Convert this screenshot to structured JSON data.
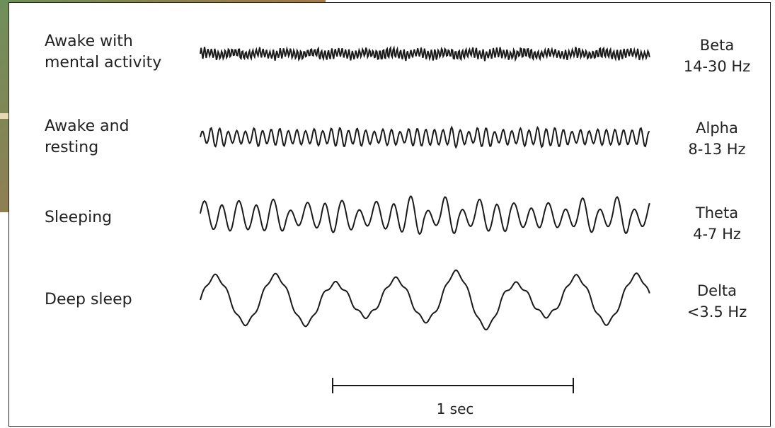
{
  "rows": [
    {
      "state": "Awake with\nmental activity",
      "band": "Beta",
      "range": "14-30 Hz",
      "cycles_per_second": 70,
      "amplitude": "small"
    },
    {
      "state": "Awake and\nresting",
      "band": "Alpha",
      "range": "8-13 Hz",
      "cycles_per_second": 28,
      "amplitude": "medium"
    },
    {
      "state": "Sleeping",
      "band": "Theta",
      "range": "4-7 Hz",
      "cycles_per_second": 14,
      "amplitude": "large"
    },
    {
      "state": "Deep sleep",
      "band": "Delta",
      "range": "<3.5 Hz",
      "cycles_per_second": 4,
      "amplitude": "largest"
    }
  ],
  "scale_bar": {
    "label": "1 sec"
  },
  "colors": {
    "trace": "#1a1a1a",
    "text": "#222222"
  }
}
